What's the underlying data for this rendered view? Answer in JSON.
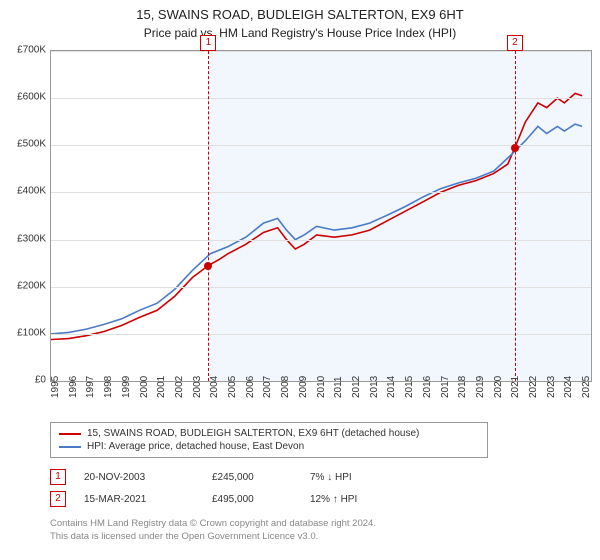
{
  "title": "15, SWAINS ROAD, BUDLEIGH SALTERTON, EX9 6HT",
  "subtitle": "Price paid vs. HM Land Registry's House Price Index (HPI)",
  "chart": {
    "type": "line",
    "background_color": "#ffffff",
    "grid_color": "#e0e0e0",
    "border_color": "#999999",
    "xlim": [
      1995,
      2025.5
    ],
    "ylim": [
      0,
      700000
    ],
    "ytick_step": 100000,
    "yticks": [
      "£0",
      "£100K",
      "£200K",
      "£300K",
      "£400K",
      "£500K",
      "£600K",
      "£700K"
    ],
    "xticks": [
      1995,
      1996,
      1997,
      1998,
      1999,
      2000,
      2001,
      2002,
      2003,
      2004,
      2005,
      2006,
      2007,
      2008,
      2009,
      2010,
      2011,
      2012,
      2013,
      2014,
      2015,
      2016,
      2017,
      2018,
      2019,
      2020,
      2021,
      2022,
      2023,
      2024,
      2025
    ],
    "label_fontsize": 10,
    "line_width": 1.6,
    "shade_color": "#eaf0fb",
    "shade_start": 2003.89,
    "shade_end": 2025.5,
    "series": [
      {
        "name": "property",
        "color": "#cc0000",
        "data": [
          [
            1995,
            88000
          ],
          [
            1996,
            90000
          ],
          [
            1997,
            96000
          ],
          [
            1998,
            105000
          ],
          [
            1999,
            118000
          ],
          [
            2000,
            135000
          ],
          [
            2001,
            150000
          ],
          [
            2002,
            180000
          ],
          [
            2003,
            220000
          ],
          [
            2003.89,
            245000
          ],
          [
            2004.5,
            258000
          ],
          [
            2005,
            270000
          ],
          [
            2006,
            290000
          ],
          [
            2007,
            315000
          ],
          [
            2007.8,
            325000
          ],
          [
            2008.3,
            300000
          ],
          [
            2008.8,
            280000
          ],
          [
            2009.3,
            290000
          ],
          [
            2010,
            310000
          ],
          [
            2011,
            305000
          ],
          [
            2012,
            310000
          ],
          [
            2013,
            320000
          ],
          [
            2014,
            340000
          ],
          [
            2015,
            360000
          ],
          [
            2016,
            380000
          ],
          [
            2017,
            400000
          ],
          [
            2018,
            415000
          ],
          [
            2019,
            425000
          ],
          [
            2020,
            440000
          ],
          [
            2020.8,
            460000
          ],
          [
            2021.2,
            495000
          ],
          [
            2021.8,
            550000
          ],
          [
            2022.5,
            590000
          ],
          [
            2023,
            580000
          ],
          [
            2023.6,
            600000
          ],
          [
            2024,
            590000
          ],
          [
            2024.6,
            610000
          ],
          [
            2025,
            605000
          ]
        ]
      },
      {
        "name": "hpi",
        "color": "#4a7bc8",
        "data": [
          [
            1995,
            100000
          ],
          [
            1996,
            103000
          ],
          [
            1997,
            110000
          ],
          [
            1998,
            120000
          ],
          [
            1999,
            132000
          ],
          [
            2000,
            150000
          ],
          [
            2001,
            165000
          ],
          [
            2002,
            195000
          ],
          [
            2003,
            235000
          ],
          [
            2004,
            270000
          ],
          [
            2005,
            285000
          ],
          [
            2006,
            305000
          ],
          [
            2007,
            335000
          ],
          [
            2007.8,
            345000
          ],
          [
            2008.3,
            320000
          ],
          [
            2008.8,
            300000
          ],
          [
            2009.3,
            310000
          ],
          [
            2010,
            328000
          ],
          [
            2011,
            320000
          ],
          [
            2012,
            325000
          ],
          [
            2013,
            335000
          ],
          [
            2014,
            352000
          ],
          [
            2015,
            370000
          ],
          [
            2016,
            390000
          ],
          [
            2017,
            408000
          ],
          [
            2018,
            420000
          ],
          [
            2019,
            430000
          ],
          [
            2020,
            445000
          ],
          [
            2021,
            480000
          ],
          [
            2021.8,
            510000
          ],
          [
            2022.5,
            540000
          ],
          [
            2023,
            525000
          ],
          [
            2023.6,
            540000
          ],
          [
            2024,
            530000
          ],
          [
            2024.6,
            545000
          ],
          [
            2025,
            540000
          ]
        ]
      }
    ],
    "markers": [
      {
        "n": "1",
        "x": 2003.89,
        "y": 245000
      },
      {
        "n": "2",
        "x": 2021.2,
        "y": 495000
      }
    ]
  },
  "legend": {
    "series1": {
      "label": "15, SWAINS ROAD, BUDLEIGH SALTERTON, EX9 6HT (detached house)",
      "color": "#cc0000"
    },
    "series2": {
      "label": "HPI: Average price, detached house, East Devon",
      "color": "#4a7bc8"
    }
  },
  "sales": [
    {
      "n": "1",
      "date": "20-NOV-2003",
      "price": "£245,000",
      "hpi_pct": "7%",
      "hpi_dir": "↓",
      "hpi_label": "HPI"
    },
    {
      "n": "2",
      "date": "15-MAR-2021",
      "price": "£495,000",
      "hpi_pct": "12%",
      "hpi_dir": "↑",
      "hpi_label": "HPI"
    }
  ],
  "footer": {
    "line1": "Contains HM Land Registry data © Crown copyright and database right 2024.",
    "line2": "This data is licensed under the Open Government Licence v3.0."
  }
}
